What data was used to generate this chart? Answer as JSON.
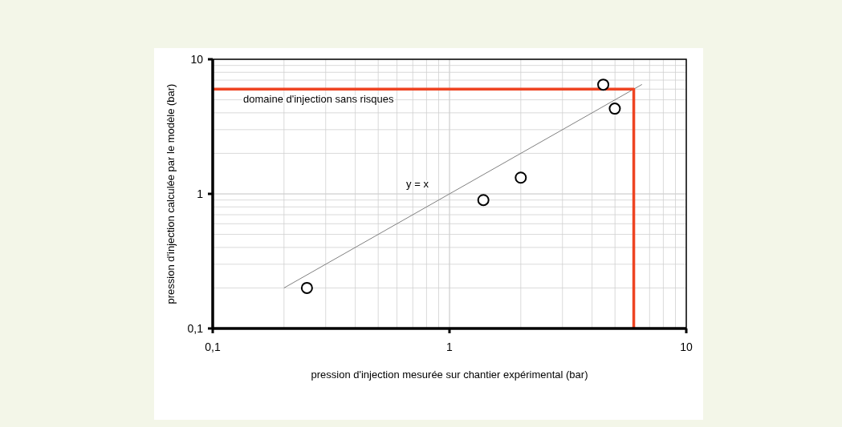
{
  "chart_data": {
    "type": "scatter",
    "xlabel": "pression d'injection mesurée sur chantier expérimental (bar)",
    "ylabel": "pression d'injection calculée par le modèle (bar)",
    "log": "xy",
    "grid": true,
    "marker": "circle",
    "xlim": [
      0.1,
      10
    ],
    "ylim": [
      0.1,
      10
    ],
    "xticks": [
      {
        "value": 0.1,
        "label": "0,1"
      },
      1,
      10
    ],
    "yticks": [
      {
        "value": 0.1,
        "label": "0,1"
      },
      1,
      10
    ],
    "series": [
      {
        "type": "line",
        "color": "#808080",
        "x": [
          0.2,
          6.5
        ],
        "values": [
          0.2,
          6.5
        ],
        "marker": "none"
      },
      {
        "type": "line",
        "color": "#ee4422",
        "x": [
          0.1,
          6,
          6
        ],
        "values": [
          6,
          6,
          0.1
        ],
        "marker": "none"
      },
      {
        "color": "#000000",
        "x": [
          0.25,
          1.39,
          2.0,
          4.46,
          4.99
        ],
        "values": [
          0.2,
          0.9,
          1.32,
          6.48,
          4.3
        ]
      }
    ],
    "annotations": [
      "y = x",
      "domaine d'injection sans risques"
    ]
  }
}
